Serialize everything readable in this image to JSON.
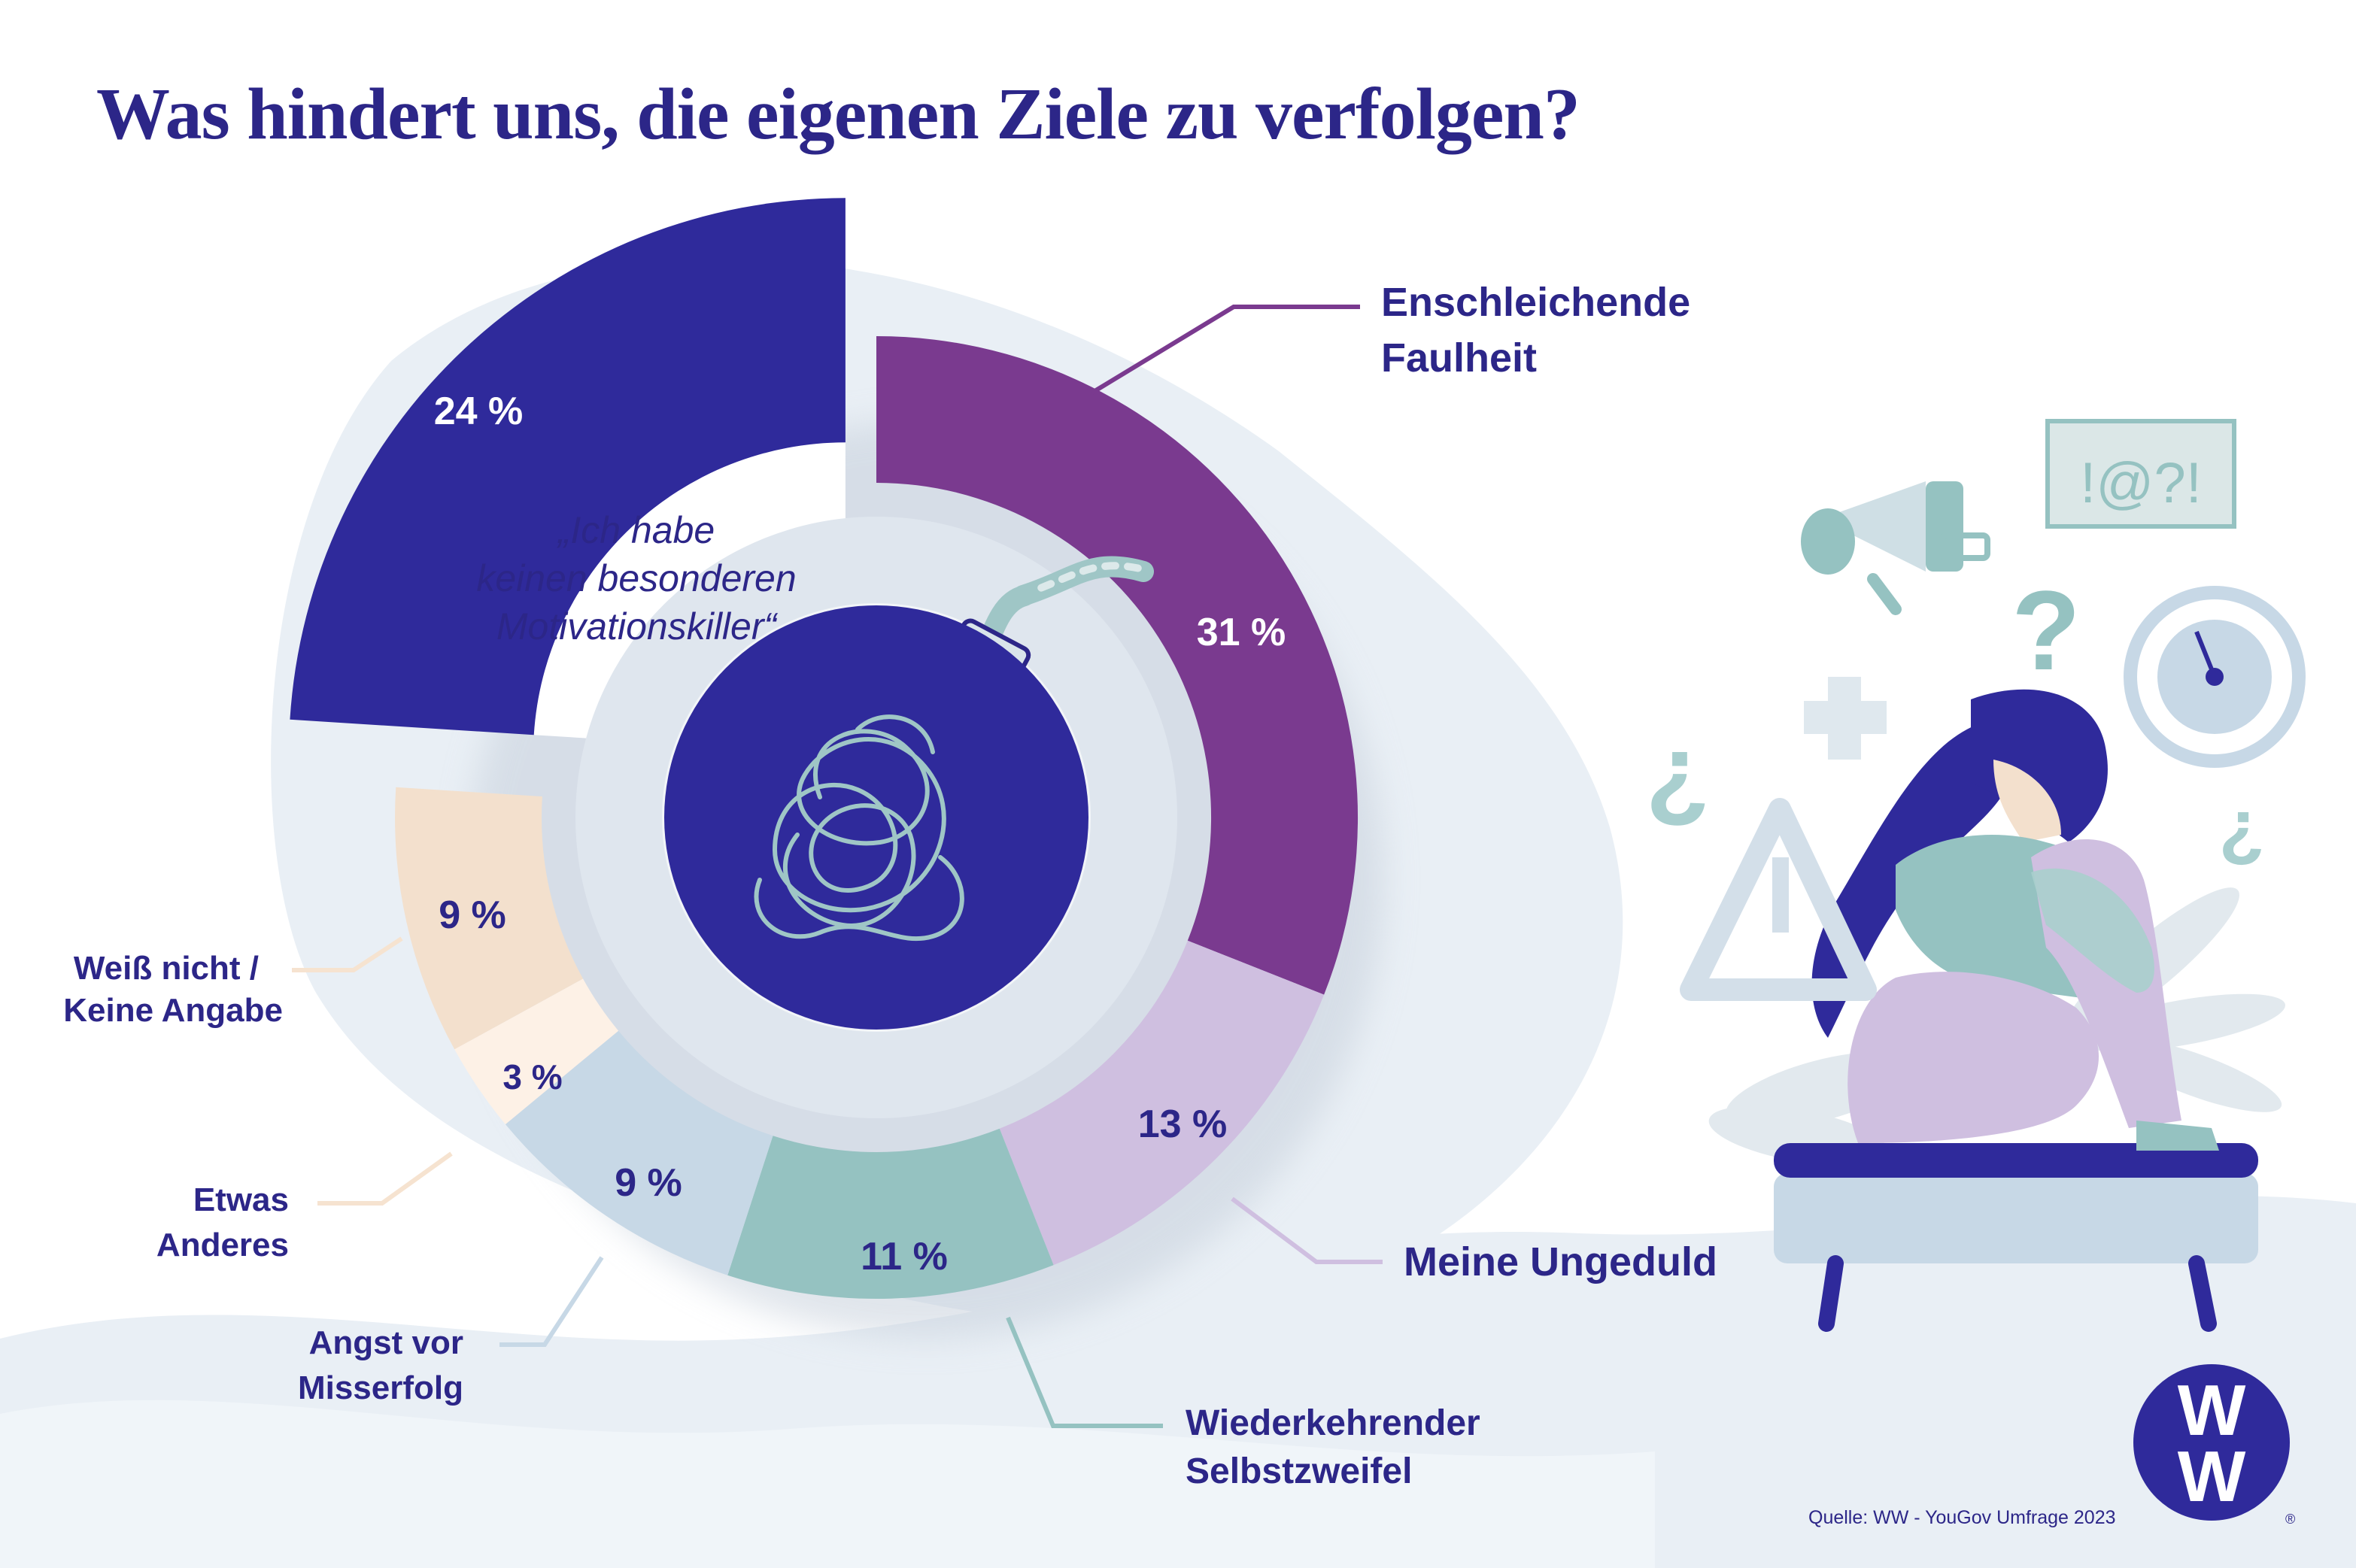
{
  "title": "Was hindert uns, die eigenen Ziele zu verfolgen?",
  "colors": {
    "navy": "#2f2a9b",
    "purple": "#7a3a8f",
    "lavender": "#cfbfe0",
    "teal": "#95c2c1",
    "lightblue": "#c7d8e6",
    "cream": "#fdf1e6",
    "peach": "#f3e0cd",
    "background_wash": "#e9eff5"
  },
  "chart_data": {
    "type": "pie",
    "variant": "exploded-donut",
    "title": "Was hindert uns, die eigenen Ziele zu verfolgen?",
    "slices": [
      {
        "label": "„Ich habe keinen besonderen Motivationskiller“",
        "value": 24,
        "value_label": "24 %",
        "color": "#2f2a9b",
        "exploded": true
      },
      {
        "label": "Enschleichende Faulheit",
        "value": 31,
        "value_label": "31 %",
        "color": "#7a3a8f"
      },
      {
        "label": "Meine Ungeduld",
        "value": 13,
        "value_label": "13 %",
        "color": "#cfbfe0"
      },
      {
        "label": "Wiederkehrender Selbstzweifel",
        "value": 11,
        "value_label": "11 %",
        "color": "#95c2c1"
      },
      {
        "label": "Angst vor Misserfolg",
        "value": 9,
        "value_label": "9 %",
        "color": "#c7d8e6"
      },
      {
        "label": "Etwas Anderes",
        "value": 3,
        "value_label": "3 %",
        "color": "#fdf1e6"
      },
      {
        "label": "Weiß nicht / Keine Angabe",
        "value": 9,
        "value_label": "9 %",
        "color": "#f3e0cd"
      }
    ],
    "labels": {
      "quote": [
        "„Ich habe",
        "keinen besonderen",
        "Motivationskiller“"
      ],
      "faulheit": [
        "Enschleichende",
        "Faulheit"
      ],
      "ungeduld": [
        "Meine Ungeduld"
      ],
      "selbstzweifel": [
        "Wiederkehrender",
        "Selbstzweifel"
      ],
      "angst": [
        "Angst vor",
        "Misserfolg"
      ],
      "anderes": [
        "Etwas",
        "Anderes"
      ],
      "weissnicht": [
        "Weiß nicht /",
        "Keine Angabe"
      ]
    }
  },
  "illustration": {
    "sign_text": "!@?!",
    "icons": [
      "megaphone-icon",
      "clock-icon",
      "question-mark-icon",
      "warning-icon",
      "plus-icon",
      "bomb-icon"
    ]
  },
  "logo": {
    "text": "WW",
    "registered": "®"
  },
  "source": "Quelle: WW - YouGov Umfrage 2023"
}
